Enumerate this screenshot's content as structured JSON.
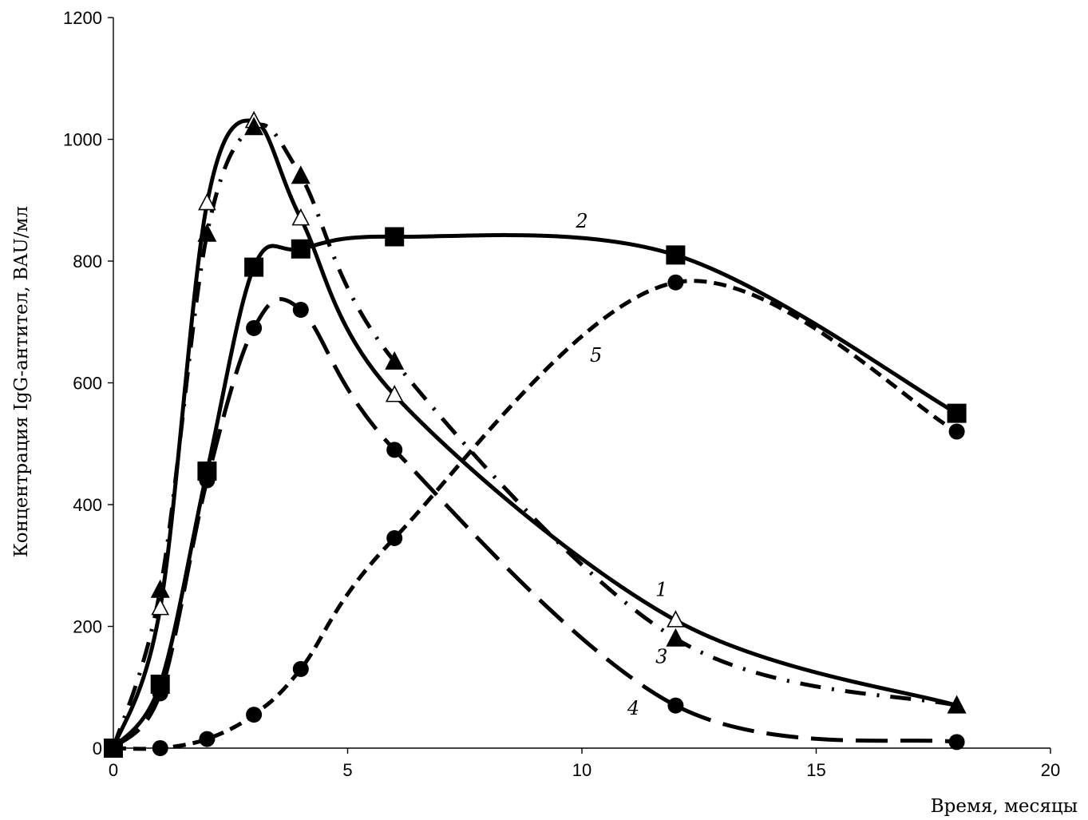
{
  "chart_data": {
    "type": "line",
    "title": "",
    "xlabel": "Время, месяцы",
    "ylabel": "Концентрация IgG-антител, BAU/мл",
    "xlim": [
      0,
      20
    ],
    "ylim": [
      0,
      1200
    ],
    "xticks": [
      0,
      5,
      10,
      15,
      20
    ],
    "yticks": [
      0,
      200,
      400,
      600,
      800,
      1000,
      1200
    ],
    "x_tick_labels": [
      "0",
      "5",
      "10",
      "15",
      "20"
    ],
    "y_tick_labels": [
      "0",
      "200",
      "400",
      "600",
      "800",
      "1000",
      "1200"
    ],
    "grid": false,
    "legend": "none",
    "x": [
      0,
      1,
      2,
      3,
      4,
      6,
      12,
      18
    ],
    "series": [
      {
        "label": "1",
        "line": "solid",
        "marker": "triangle-open",
        "values": [
          0,
          230,
          895,
          1030,
          870,
          580,
          210,
          70
        ]
      },
      {
        "label": "2",
        "line": "solid",
        "marker": "square",
        "values": [
          0,
          105,
          455,
          790,
          820,
          840,
          810,
          550
        ]
      },
      {
        "label": "3",
        "line": "dash-dot",
        "marker": "triangle",
        "values": [
          0,
          260,
          845,
          1020,
          940,
          635,
          180,
          70
        ]
      },
      {
        "label": "4",
        "line": "long-dash",
        "marker": "circle",
        "values": [
          0,
          90,
          440,
          690,
          720,
          490,
          70,
          10
        ]
      },
      {
        "label": "5",
        "line": "dash",
        "marker": "circle",
        "values": [
          0,
          0,
          15,
          55,
          130,
          345,
          765,
          520
        ]
      }
    ],
    "curve_label_positions": [
      {
        "label": "1",
        "x": 11.7,
        "y": 250
      },
      {
        "label": "2",
        "x": 10.0,
        "y": 855
      },
      {
        "label": "3",
        "x": 11.7,
        "y": 140
      },
      {
        "label": "4",
        "x": 11.1,
        "y": 55
      },
      {
        "label": "5",
        "x": 10.3,
        "y": 635
      }
    ]
  }
}
